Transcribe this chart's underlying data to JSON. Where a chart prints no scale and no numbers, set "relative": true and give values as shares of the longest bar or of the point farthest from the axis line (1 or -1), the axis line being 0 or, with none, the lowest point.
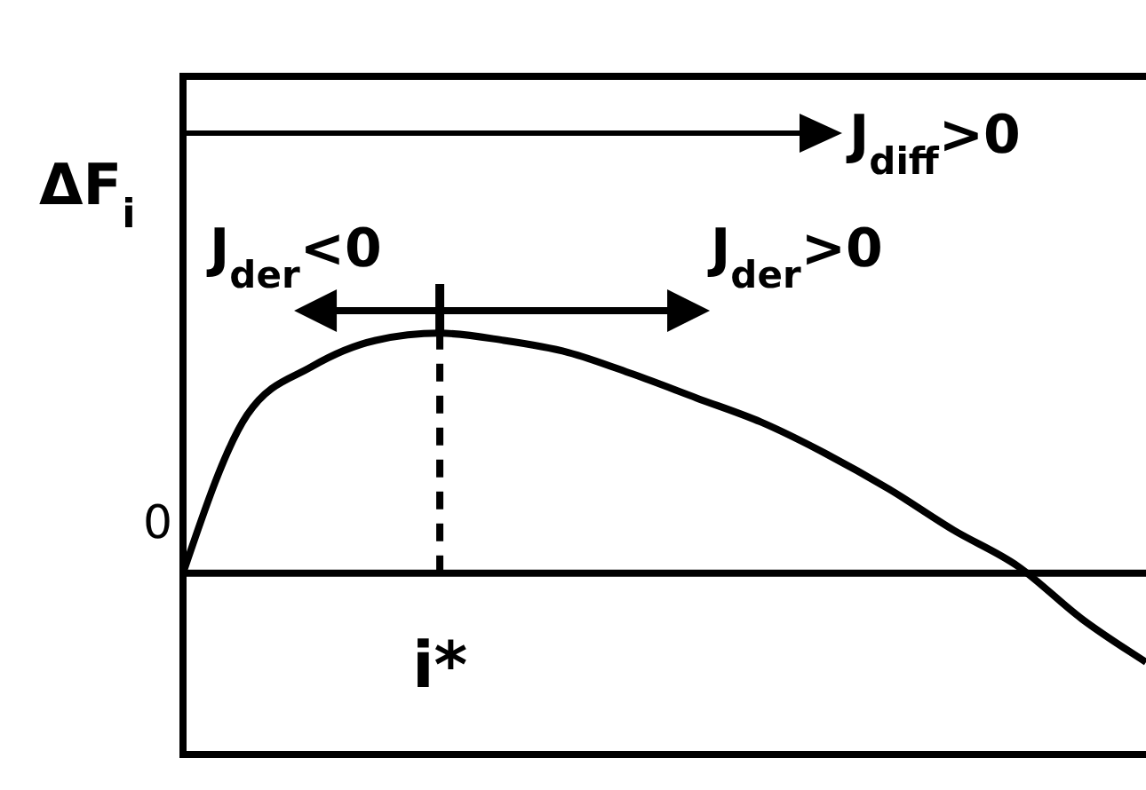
{
  "chart_data": {
    "type": "line",
    "relative": true,
    "ylabel": "ΔF$_{i}$",
    "categories": [
      null,
      null,
      null,
      null,
      null,
      null,
      null,
      null,
      null,
      null,
      null,
      null,
      null,
      null,
      null,
      null
    ],
    "series": [
      {
        "color": "#000000",
        "values": [
          0,
          0.66,
          0.86,
          0.97,
          1,
          0.97,
          0.92,
          0.83,
          0.73,
          0.63,
          0.5,
          0.35,
          0.18,
          0.03,
          -0.19,
          -0.37
        ]
      }
    ],
    "ref_lines": [
      {
        "axis": "y",
        "value": 0,
        "label": "0"
      },
      {
        "axis": "x",
        "label": "i*",
        "line_style": "dashed"
      }
    ],
    "annotations": [
      "J$_{diff}$>0",
      "J$_{der}$<0",
      "J$_{der}$>0"
    ],
    "marker": "none",
    "line_style": "solid"
  }
}
